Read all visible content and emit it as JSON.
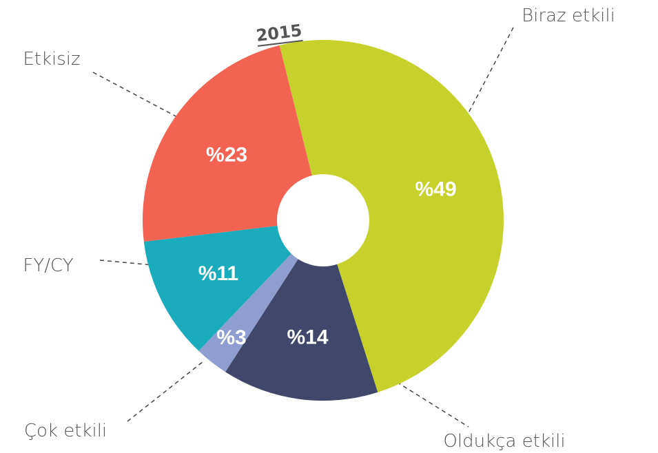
{
  "chart_data": {
    "type": "donut",
    "title": "2015",
    "categories": [
      "Biraz etkili",
      "Oldukça etkili",
      "Çok etkili",
      "FY/CY",
      "Etkisiz"
    ],
    "values": [
      49,
      14,
      3,
      11,
      23
    ],
    "value_labels": [
      "%49",
      "%14",
      "%3",
      "%11",
      "%23"
    ],
    "colors": [
      "#c6d22b",
      "#40476a",
      "#8f9ed1",
      "#1aacbc",
      "#f26451"
    ]
  }
}
